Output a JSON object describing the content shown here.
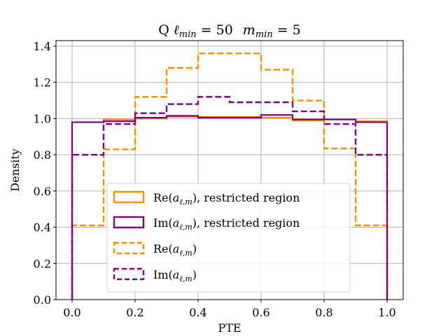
{
  "chart_data": {
    "type": "histogram-step",
    "title": "Q ℓ_min = 50   m_min = 5",
    "title_parts": {
      "prefix": "Q ",
      "l_sym": "ℓ",
      "l_sub": "min",
      "l_eq": " = 50",
      "m_sym": "m",
      "m_sub": "min",
      "m_eq": " = 5"
    },
    "xlabel": "PTE",
    "ylabel": "Density",
    "xlim": [
      -0.05,
      1.05
    ],
    "ylim": [
      0.0,
      1.42
    ],
    "xticks": [
      0.0,
      0.2,
      0.4,
      0.6,
      0.8,
      1.0
    ],
    "xtick_labels": [
      "0.0",
      "0.2",
      "0.4",
      "0.6",
      "0.8",
      "1.0"
    ],
    "yticks": [
      0.0,
      0.2,
      0.4,
      0.6,
      0.8,
      1.0,
      1.2,
      1.4
    ],
    "ytick_labels": [
      "0.0",
      "0.2",
      "0.4",
      "0.6",
      "0.8",
      "1.0",
      "1.2",
      "1.4"
    ],
    "grid": true,
    "legend_position": "lower-center",
    "bin_edges": [
      0.0,
      0.1,
      0.2,
      0.3,
      0.4,
      0.5,
      0.6,
      0.7,
      0.8,
      0.9,
      1.0
    ],
    "series": [
      {
        "name": "Re(a_{ℓ,m}), restricted region",
        "label_main": "Re(",
        "label_suffix": "), restricted region",
        "color": "#ff8c00",
        "style": "solid",
        "values": [
          0.98,
          0.995,
          1.0,
          1.01,
          1.01,
          1.01,
          1.005,
          0.99,
          0.995,
          0.985
        ]
      },
      {
        "name": "Im(a_{ℓ,m}), restricted region",
        "label_main": "Im(",
        "label_suffix": "), restricted region",
        "color": "#800080",
        "style": "solid",
        "values": [
          0.98,
          0.985,
          1.005,
          1.015,
          1.005,
          1.005,
          1.02,
          0.995,
          0.995,
          0.98
        ]
      },
      {
        "name": "Re(a_{ℓ,m})",
        "label_main": "Re(",
        "label_suffix": ")",
        "color": "#ff8c00",
        "style": "dashed",
        "values": [
          0.41,
          0.83,
          1.12,
          1.28,
          1.36,
          1.36,
          1.27,
          1.1,
          0.835,
          0.41
        ]
      },
      {
        "name": "Im(a_{ℓ,m})",
        "label_main": "Im(",
        "label_suffix": ")",
        "color": "#800080",
        "style": "dashed",
        "values": [
          0.8,
          0.97,
          1.03,
          1.08,
          1.12,
          1.09,
          1.09,
          1.04,
          0.97,
          0.8
        ]
      }
    ]
  }
}
